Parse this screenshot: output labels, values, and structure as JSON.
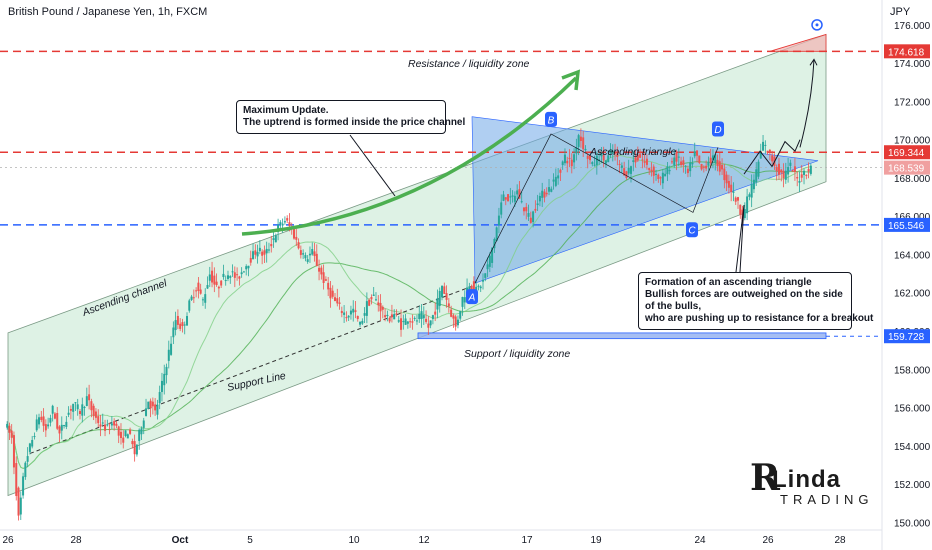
{
  "header": {
    "title": "British Pound / Japanese Yen, 1h, FXCM",
    "currency": "JPY"
  },
  "watermark": {
    "initial": "R",
    "name": "Linda",
    "sub": "TRADING"
  },
  "annotations": {
    "box1": [
      "Maximum Update.",
      "The uptrend is formed inside the price channel"
    ],
    "box2": [
      "Formation of an ascending triangle",
      "Bullish forces are outweighed on the side",
      "of the bulls,",
      "who are pushing up to resistance for a breakout"
    ]
  },
  "colors": {
    "up_candle": "#26a69a",
    "down_candle": "#ef5350",
    "resistance": "#e53935",
    "support": "#2962ff",
    "channel_fill": "#c8ead4",
    "triangle_fill": "#6fa8e8",
    "ma": "#4caf50",
    "arrow": "#4caf50"
  },
  "chart_data": {
    "type": "candlestick",
    "title": "British Pound / Japanese Yen, 1h, FXCM",
    "y_unit": "JPY",
    "x_tick_labels": [
      "26",
      "28",
      "Oct",
      "5",
      "10",
      "12",
      "17",
      "19",
      "24",
      "26",
      "28"
    ],
    "y_tick_labels": [
      150.0,
      152.0,
      154.0,
      156.0,
      158.0,
      160.0,
      162.0,
      164.0,
      166.0,
      168.0,
      170.0,
      172.0,
      174.0,
      176.0
    ],
    "ylim": [
      149.6,
      177.3
    ],
    "price_markers": [
      {
        "label": "174.618",
        "value": 174.618,
        "color": "#e53935"
      },
      {
        "label": "169.344",
        "value": 169.344,
        "color": "#e53935"
      },
      {
        "label": "168.539",
        "value": 168.539,
        "color": "#f0a0a0"
      },
      {
        "label": "165.546",
        "value": 165.546,
        "color": "#2962ff"
      },
      {
        "label": "159.728",
        "value": 159.728,
        "color": "#2962ff"
      }
    ],
    "levels": [
      {
        "name": "Resistance / liquidity zone",
        "value": 174.618,
        "style": "dashed",
        "color": "#e53935"
      },
      {
        "name": "",
        "value": 169.344,
        "style": "dashed",
        "color": "#e53935"
      },
      {
        "name": "",
        "value": 165.546,
        "style": "dashed",
        "color": "#2962ff"
      },
      {
        "name": "Support / liquidity zone",
        "value": 159.728,
        "style": "zone",
        "color": "#2962ff"
      }
    ],
    "labels": {
      "channel": "Ascending channel",
      "support_line": "Support Line",
      "triangle": "Ascending triangle",
      "resistance_zone": "Resistance / liquidity zone",
      "support_zone": "Support / liquidity zone"
    },
    "points": [
      {
        "label": "A",
        "x_bar": 475,
        "value": 162.5
      },
      {
        "label": "B",
        "x_bar": 551,
        "value": 170.3
      },
      {
        "label": "C",
        "x_bar": 693,
        "value": 166.0
      },
      {
        "label": "D",
        "x_bar": 718,
        "value": 169.8
      }
    ],
    "path_values": [
      155.2,
      154.4,
      150.2,
      153.2,
      154.3,
      155.6,
      154.8,
      155.9,
      154.6,
      155.5,
      156.2,
      155.8,
      156.5,
      155.6,
      155.1,
      154.9,
      155.3,
      154.2,
      154.8,
      153.6,
      155.1,
      156.4,
      155.7,
      157.2,
      158.9,
      160.6,
      160.1,
      161.4,
      162.3,
      161.6,
      163.0,
      162.2,
      162.8,
      163.1,
      162.7,
      163.3,
      163.8,
      164.3,
      163.9,
      164.6,
      165.4,
      165.8,
      165.3,
      164.4,
      163.8,
      164.1,
      163.2,
      162.4,
      161.7,
      161.2,
      160.8,
      161.1,
      160.3,
      161.4,
      161.8,
      161.2,
      160.6,
      160.9,
      160.3,
      160.7,
      160.5,
      160.8,
      160.2,
      161.1,
      162.4,
      161.3,
      160.2,
      161.7,
      162.5,
      162.1,
      162.6,
      163.8,
      165.4,
      167.2,
      166.8,
      167.3,
      166.4,
      165.8,
      166.9,
      167.2,
      167.6,
      168.2,
      169.1,
      168.7,
      170.3,
      169.4,
      168.6,
      169.2,
      168.9,
      169.4,
      168.7,
      168.2,
      168.9,
      169.1,
      168.6,
      168.3,
      167.9,
      168.4,
      169.1,
      168.8,
      168.2,
      169.3,
      168.4,
      168.9,
      169.0,
      168.3,
      167.6,
      166.9,
      166.0,
      167.2,
      168.3,
      169.8,
      169.2,
      168.5,
      168.1,
      168.6,
      167.9,
      168.3,
      168.5
    ]
  }
}
